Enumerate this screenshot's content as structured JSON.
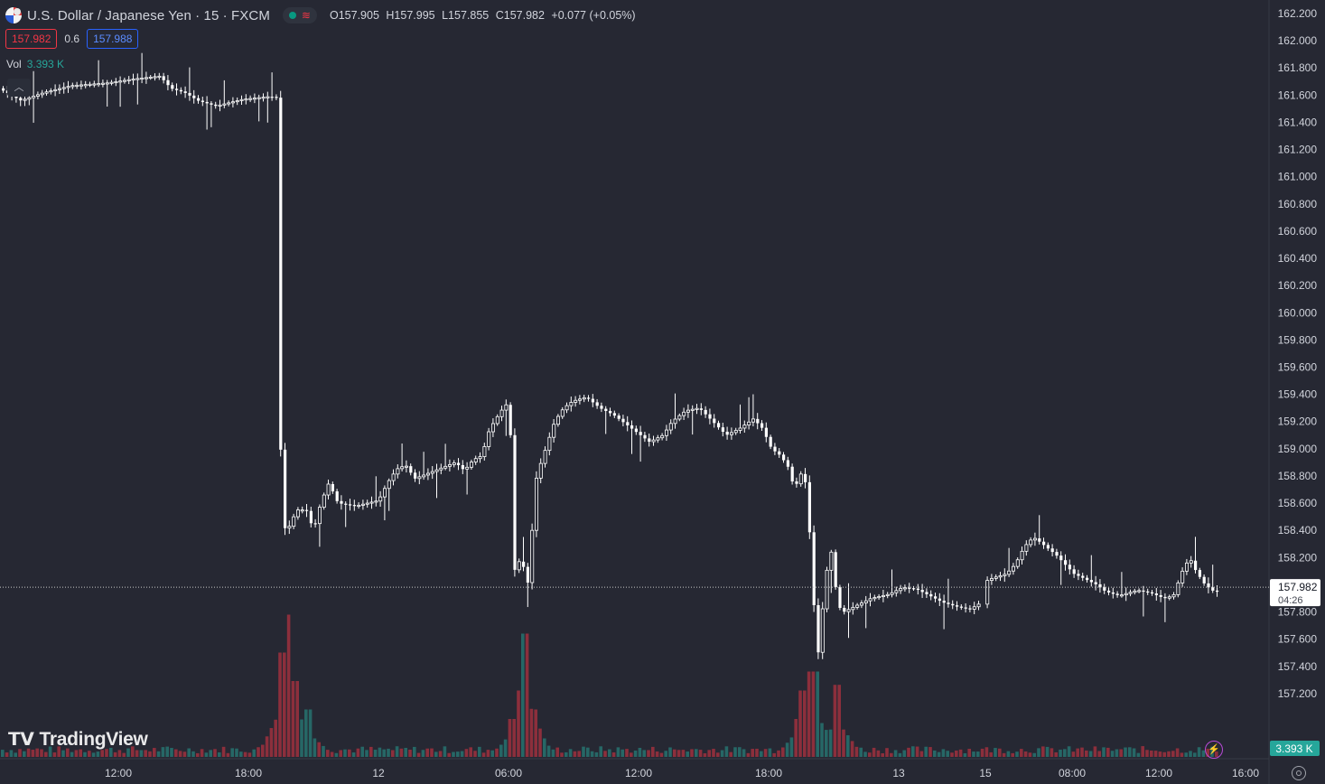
{
  "header": {
    "symbol": "U.S. Dollar / Japanese Yen · 15 · FXCM",
    "ohlc": {
      "open": "O157.905",
      "high": "H157.995",
      "low": "L157.855",
      "close": "C157.982",
      "change": "+0.077 (+0.05%)"
    }
  },
  "trade": {
    "sell": "157.982",
    "spread": "0.6",
    "buy": "157.988"
  },
  "volume": {
    "label": "Vol",
    "value": "3.393 K"
  },
  "branding": {
    "logo_text": "TradingView"
  },
  "colors": {
    "background": "#262833",
    "up": "#26a69a",
    "down": "#f23645",
    "candle": "#ffffff"
  },
  "chart_data": {
    "type": "candlestick",
    "y_axis": {
      "min": 157.0,
      "max": 162.2,
      "ticks": [
        "162.200",
        "162.000",
        "161.800",
        "161.600",
        "161.400",
        "161.200",
        "161.000",
        "160.800",
        "160.600",
        "160.400",
        "160.200",
        "160.000",
        "159.800",
        "159.600",
        "159.400",
        "159.200",
        "159.000",
        "158.800",
        "158.600",
        "158.400",
        "158.200",
        "158.000",
        "157.800",
        "157.600",
        "157.400",
        "157.200"
      ]
    },
    "x_axis": {
      "tick_labels": [
        "12:00",
        "18:00",
        "12",
        "06:00",
        "12:00",
        "18:00",
        "13",
        "15",
        "08:00",
        "12:00",
        "16:00"
      ]
    },
    "last_price": {
      "value": "157.982",
      "countdown": "04:26"
    },
    "volume_label": "3.393 K",
    "price_path": [
      [
        0,
        161.65
      ],
      [
        24,
        161.56
      ],
      [
        50,
        161.62
      ],
      [
        80,
        161.67
      ],
      [
        120,
        161.69
      ],
      [
        150,
        161.72
      ],
      [
        178,
        161.74
      ],
      [
        190,
        161.65
      ],
      [
        205,
        161.62
      ],
      [
        220,
        161.56
      ],
      [
        240,
        161.52
      ],
      [
        270,
        161.57
      ],
      [
        300,
        161.59
      ],
      [
        308,
        161.58
      ],
      [
        309,
        161.55
      ],
      [
        312,
        158.6
      ],
      [
        318,
        158.35
      ],
      [
        322,
        158.45
      ],
      [
        330,
        158.55
      ],
      [
        340,
        158.55
      ],
      [
        348,
        158.4
      ],
      [
        356,
        158.6
      ],
      [
        365,
        158.75
      ],
      [
        375,
        158.6
      ],
      [
        395,
        158.58
      ],
      [
        420,
        158.62
      ],
      [
        430,
        158.75
      ],
      [
        440,
        158.85
      ],
      [
        450,
        158.88
      ],
      [
        460,
        158.78
      ],
      [
        475,
        158.82
      ],
      [
        490,
        158.86
      ],
      [
        505,
        158.9
      ],
      [
        515,
        158.84
      ],
      [
        525,
        158.92
      ],
      [
        535,
        158.95
      ],
      [
        540,
        159.1
      ],
      [
        548,
        159.2
      ],
      [
        558,
        159.3
      ],
      [
        565,
        159.35
      ],
      [
        570,
        158.1
      ],
      [
        578,
        158.2
      ],
      [
        585,
        158.0
      ],
      [
        590,
        158.4
      ],
      [
        595,
        158.8
      ],
      [
        605,
        159.0
      ],
      [
        615,
        159.2
      ],
      [
        625,
        159.3
      ],
      [
        635,
        159.35
      ],
      [
        650,
        159.38
      ],
      [
        665,
        159.3
      ],
      [
        680,
        159.25
      ],
      [
        700,
        159.15
      ],
      [
        720,
        159.05
      ],
      [
        735,
        159.1
      ],
      [
        745,
        159.2
      ],
      [
        760,
        159.28
      ],
      [
        775,
        159.3
      ],
      [
        790,
        159.2
      ],
      [
        805,
        159.1
      ],
      [
        820,
        159.15
      ],
      [
        835,
        159.22
      ],
      [
        845,
        159.15
      ],
      [
        855,
        159.0
      ],
      [
        865,
        158.95
      ],
      [
        875,
        158.85
      ],
      [
        880,
        158.7
      ],
      [
        890,
        158.85
      ],
      [
        895,
        158.65
      ],
      [
        900,
        158.05
      ],
      [
        906,
        157.45
      ],
      [
        912,
        157.85
      ],
      [
        918,
        158.2
      ],
      [
        922,
        158.25
      ],
      [
        928,
        157.85
      ],
      [
        935,
        157.8
      ],
      [
        950,
        157.85
      ],
      [
        965,
        157.9
      ],
      [
        985,
        157.93
      ],
      [
        1000,
        157.98
      ],
      [
        1015,
        157.97
      ],
      [
        1030,
        157.92
      ],
      [
        1045,
        157.87
      ],
      [
        1060,
        157.84
      ],
      [
        1075,
        157.82
      ],
      [
        1085,
        157.86
      ],
      [
        1090,
        158.02
      ],
      [
        1100,
        158.05
      ],
      [
        1115,
        158.08
      ],
      [
        1125,
        158.15
      ],
      [
        1135,
        158.28
      ],
      [
        1145,
        158.35
      ],
      [
        1155,
        158.3
      ],
      [
        1170,
        158.22
      ],
      [
        1180,
        158.15
      ],
      [
        1190,
        158.08
      ],
      [
        1200,
        158.05
      ],
      [
        1215,
        158.0
      ],
      [
        1225,
        157.95
      ],
      [
        1240,
        157.92
      ],
      [
        1260,
        157.96
      ],
      [
        1275,
        157.94
      ],
      [
        1290,
        157.9
      ],
      [
        1300,
        157.92
      ],
      [
        1310,
        158.1
      ],
      [
        1318,
        158.2
      ],
      [
        1325,
        158.1
      ],
      [
        1335,
        158.0
      ],
      [
        1345,
        157.95
      ]
    ],
    "volume_spikes": [
      [
        312,
        0.55
      ],
      [
        318,
        0.75
      ],
      [
        325,
        0.4
      ],
      [
        340,
        0.25
      ],
      [
        565,
        0.2
      ],
      [
        572,
        0.35
      ],
      [
        580,
        0.65
      ],
      [
        590,
        0.25
      ],
      [
        880,
        0.2
      ],
      [
        887,
        0.35
      ],
      [
        895,
        0.45
      ],
      [
        902,
        0.45
      ],
      [
        925,
        0.38
      ]
    ]
  }
}
